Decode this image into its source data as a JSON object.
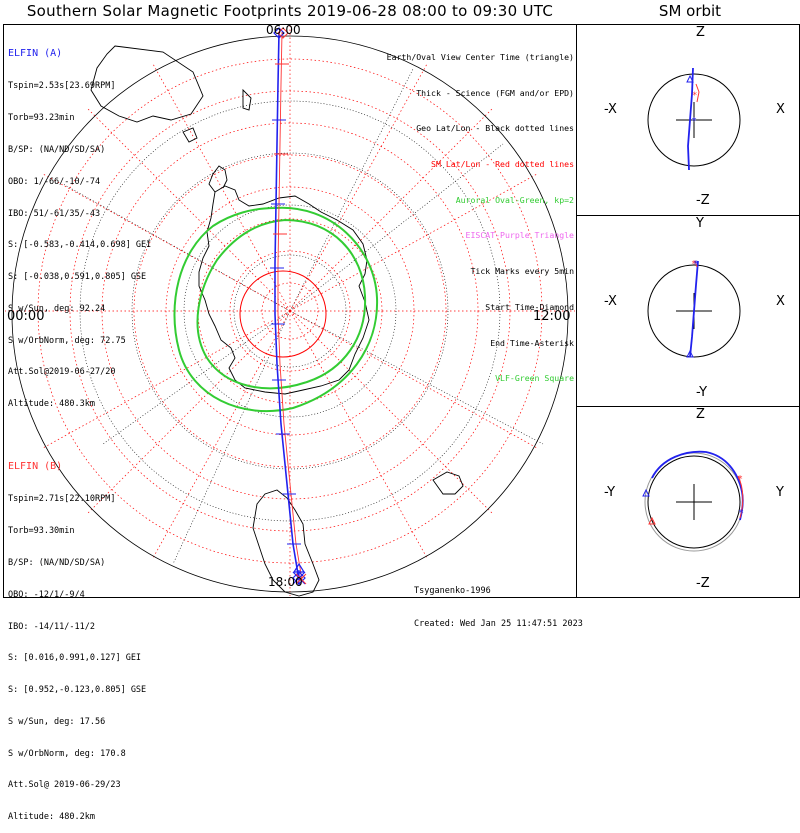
{
  "title": "Southern Solar Magnetic Footprints 2019-06-28 08:00 to 09:30 UTC",
  "orbit_title": "SM orbit",
  "map": {
    "top_label": "06:00",
    "bottom_label": "18:00",
    "left_label": "00:00",
    "right_label": "12:00"
  },
  "elfin_a": {
    "name": "ELFIN (A)",
    "color": "#2222ee",
    "lines": [
      "Tspin=2.53s[23.69RPM]",
      "Torb=93.23min",
      "B/SP: (NA/ND/SD/SA)",
      "OBO: 1/-66/-10/-74",
      "IBO: 51/-61/35/-43",
      "S: [-0.583,-0.414,0.698] GEI",
      "S: [-0.038,0.591,0.805] GSE",
      "S w/Sun, deg: 92.24",
      "S w/OrbNorm, deg: 72.75",
      "Att.Sol@2019-06-27/20",
      "Altitude: 480.3km"
    ]
  },
  "elfin_b": {
    "name": "ELFIN (B)",
    "color": "#ff3333",
    "lines": [
      "Tspin=2.71s[22.10RPM]",
      "Torb=93.30min",
      "B/SP: (NA/ND/SD/SA)",
      "OBO: -12/1/-9/4",
      "IBO: -14/11/-11/2",
      "S: [0.016,0.991,0.127] GEI",
      "S: [0.952,-0.123,0.805] GSE",
      "S w/Sun, deg: 17.56",
      "S w/OrbNorm, deg: 170.8",
      "Att.Sol@ 2019-06-29/23",
      "Altitude: 480.2km"
    ]
  },
  "legend": [
    {
      "text": "Earth/Oval View Center Time (triangle)",
      "color": "#000000"
    },
    {
      "text": "Thick - Science (FGM and/or EPD)",
      "color": "#000000"
    },
    {
      "text": "Geo Lat/Lon - Black dotted lines",
      "color": "#000000"
    },
    {
      "text": "SM Lat/Lon - Red dotted lines",
      "color": "#ff0000"
    },
    {
      "text": "Auroral Oval-Green, kp=2",
      "color": "#33cc33"
    },
    {
      "text": "EISCAT-Purple Triangle",
      "color": "#ee66ee"
    },
    {
      "text": "Tick Marks every 5min",
      "color": "#000000"
    },
    {
      "text": "Start Time-Diamond",
      "color": "#000000"
    },
    {
      "text": "End Time-Asterisk",
      "color": "#000000"
    },
    {
      "text": "VLF-Green Square",
      "color": "#33cc33"
    }
  ],
  "credit": {
    "model": "Tsyganenko-1996",
    "created": "Created: Wed Jan 25 11:47:51 2023"
  },
  "orbit_panels": [
    {
      "top": "Z",
      "bottom": "-Z",
      "left": "-X",
      "right": "X"
    },
    {
      "top": "Y",
      "bottom": "-Y",
      "left": "-X",
      "right": "X"
    },
    {
      "top": "Z",
      "bottom": "-Z",
      "left": "-Y",
      "right": "Y"
    }
  ],
  "colors": {
    "geo_grid": "#000000",
    "sm_grid": "#ff0000",
    "auroral_oval": "#33cc33",
    "coastline": "#000000",
    "track_a": "#2222ee",
    "track_b": "#ff3333"
  }
}
